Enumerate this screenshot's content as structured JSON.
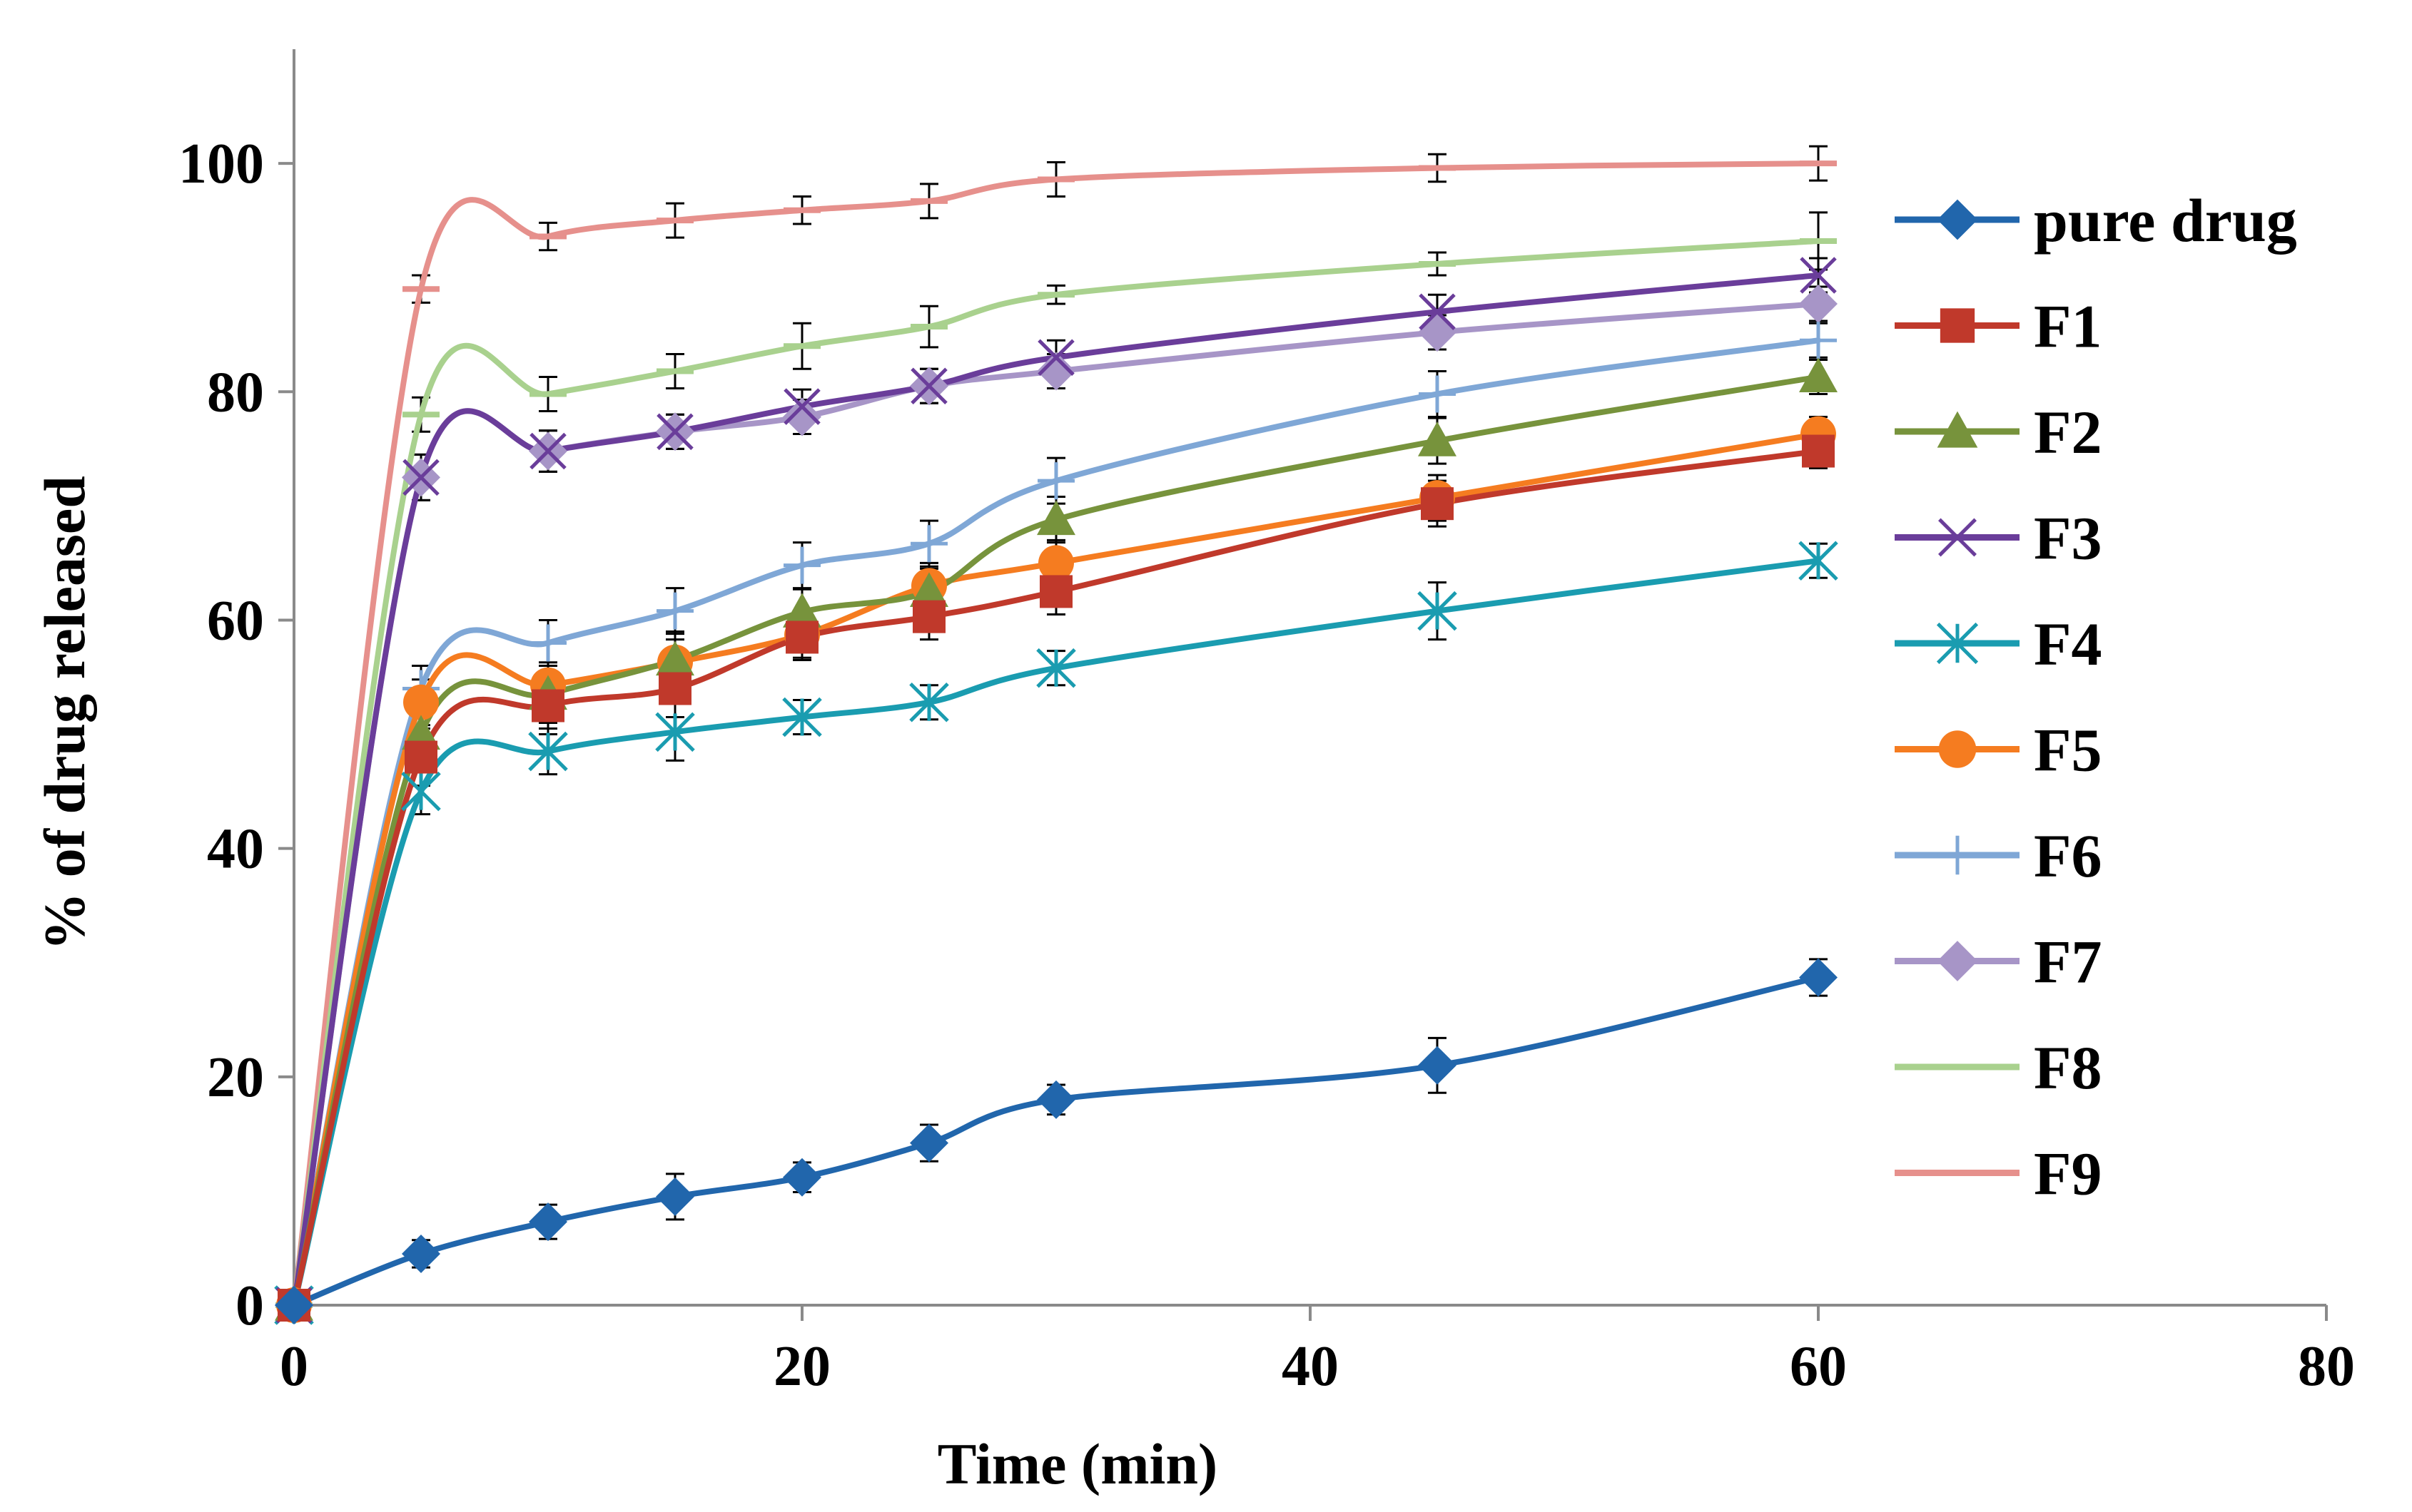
{
  "chart_data": {
    "type": "line",
    "title": "",
    "xlabel": "Time (min)",
    "ylabel": "% of drug released",
    "xlim": [
      0,
      80
    ],
    "ylim": [
      0,
      110
    ],
    "xticks": [
      "0",
      "20",
      "40",
      "60",
      "80"
    ],
    "yticks": [
      "0",
      "20",
      "40",
      "60",
      "80",
      "100"
    ],
    "x": [
      0,
      5,
      10,
      15,
      20,
      25,
      30,
      45,
      60
    ],
    "legend_position": "right",
    "series": [
      {
        "name": "pure drug",
        "color": "#2166ac",
        "marker": "diamond",
        "values": [
          0,
          4.5,
          7.3,
          9.5,
          11.2,
          14.2,
          18.0,
          21.0,
          28.7
        ],
        "errors": [
          0,
          1.2,
          1.5,
          2.0,
          1.3,
          1.6,
          1.3,
          2.4,
          1.6
        ]
      },
      {
        "name": "F1",
        "color": "#c0392b",
        "marker": "square",
        "values": [
          0,
          48.0,
          52.5,
          54.0,
          58.5,
          60.3,
          62.5,
          70.2,
          74.8
        ],
        "errors": [
          0,
          2.5,
          2.5,
          2.5,
          2.0,
          2.0,
          2.0,
          2.0,
          1.5
        ]
      },
      {
        "name": "F2",
        "color": "#77933c",
        "marker": "triangle",
        "values": [
          0,
          50.0,
          53.5,
          56.5,
          60.7,
          62.5,
          68.8,
          75.7,
          81.3
        ],
        "errors": [
          0,
          2.5,
          2.5,
          2.5,
          2.0,
          2.0,
          2.0,
          2.0,
          1.5
        ]
      },
      {
        "name": "F3",
        "color": "#6a3d9a",
        "marker": "x",
        "values": [
          0,
          72.5,
          74.8,
          76.5,
          78.7,
          80.5,
          83.0,
          87.0,
          90.2
        ],
        "errors": [
          0,
          2.0,
          1.8,
          1.5,
          1.5,
          1.5,
          1.5,
          1.5,
          1.5
        ]
      },
      {
        "name": "F4",
        "color": "#1a9cb0",
        "marker": "asterisk",
        "values": [
          0,
          45.0,
          48.5,
          50.2,
          51.5,
          52.8,
          55.8,
          60.8,
          65.2
        ],
        "errors": [
          0,
          2.0,
          2.0,
          2.5,
          1.5,
          1.5,
          1.5,
          2.5,
          1.5
        ]
      },
      {
        "name": "F5",
        "color": "#f57c20",
        "marker": "circle",
        "values": [
          0,
          52.8,
          54.3,
          56.3,
          58.7,
          63.0,
          65.0,
          70.7,
          76.3
        ],
        "errors": [
          0,
          2.0,
          2.0,
          2.0,
          2.0,
          2.0,
          2.0,
          2.0,
          1.5
        ]
      },
      {
        "name": "F6",
        "color": "#7fa7d6",
        "marker": "plus",
        "values": [
          0,
          54.0,
          58.0,
          60.8,
          64.8,
          66.7,
          72.2,
          79.8,
          84.5
        ],
        "errors": [
          0,
          2.0,
          2.0,
          2.0,
          2.0,
          2.0,
          2.0,
          2.0,
          1.5
        ]
      },
      {
        "name": "F7",
        "color": "#a795c7",
        "marker": "diamond",
        "values": [
          0,
          72.5,
          74.8,
          76.5,
          77.8,
          80.5,
          81.8,
          85.2,
          87.7
        ],
        "errors": [
          0,
          2.0,
          1.8,
          1.5,
          1.5,
          1.5,
          1.5,
          1.5,
          1.5
        ]
      },
      {
        "name": "F8",
        "color": "#a9d18e",
        "marker": "dash",
        "values": [
          0,
          78.0,
          79.8,
          81.8,
          84.0,
          85.7,
          88.5,
          91.2,
          93.2
        ],
        "errors": [
          0,
          1.5,
          1.5,
          1.5,
          2.0,
          1.8,
          0.8,
          1.0,
          2.5
        ]
      },
      {
        "name": "F9",
        "color": "#e6908c",
        "marker": "dash",
        "values": [
          0,
          89.0,
          93.6,
          95.0,
          95.9,
          96.7,
          98.6,
          99.6,
          100.0
        ],
        "errors": [
          0,
          1.2,
          1.2,
          1.5,
          1.2,
          1.5,
          1.5,
          1.2,
          1.5
        ]
      }
    ]
  }
}
